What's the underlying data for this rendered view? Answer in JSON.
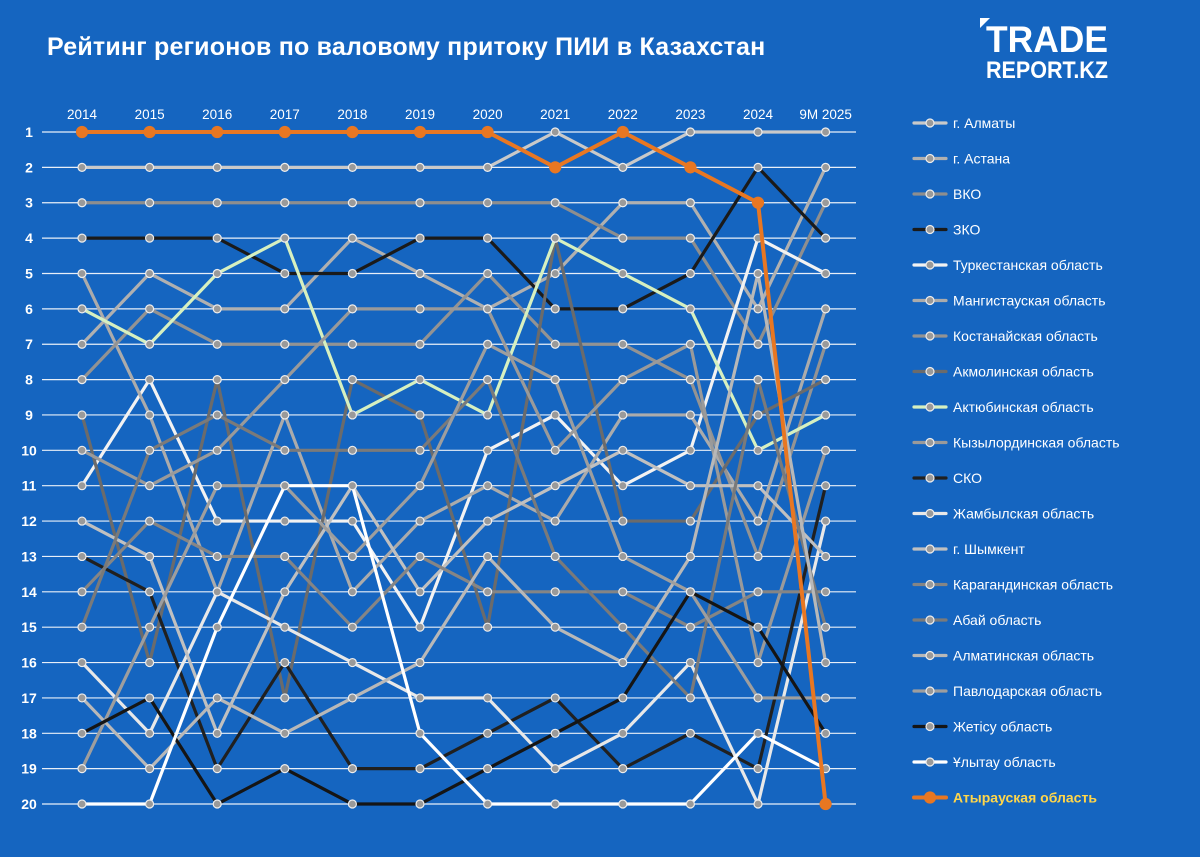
{
  "logo": {
    "line1": "TRADE",
    "line2": "REPORT.KZ",
    "tagline": ""
  },
  "colors": {
    "background": "#1565c0",
    "gridline": "#ffffff",
    "highlight": "#e87722",
    "highlight_label": "#ffd64a"
  },
  "chart_data": {
    "type": "line",
    "title": "Рейтинг  регионов по валовому притоку ПИИ в Казахстан",
    "x": [
      "2014",
      "2015",
      "2016",
      "2017",
      "2018",
      "2019",
      "2020",
      "2021",
      "2022",
      "2023",
      "2024",
      "9М 2025"
    ],
    "y_ticks": [
      1,
      2,
      3,
      4,
      5,
      6,
      7,
      8,
      9,
      10,
      11,
      12,
      13,
      14,
      15,
      16,
      17,
      18,
      19,
      20
    ],
    "ylim": [
      1,
      20
    ],
    "y_inverted": true,
    "grid": true,
    "legend_position": "right",
    "series": [
      {
        "name": "г. Алматы",
        "color": "#c9c9c9",
        "values": [
          2,
          2,
          2,
          2,
          2,
          2,
          2,
          1,
          2,
          1,
          1,
          1
        ]
      },
      {
        "name": "г. Астана",
        "color": "#b0b0b0",
        "values": [
          7,
          5,
          6,
          6,
          4,
          5,
          6,
          5,
          3,
          3,
          6,
          2
        ]
      },
      {
        "name": "ВКО",
        "color": "#8e8e8e",
        "values": [
          3,
          3,
          3,
          3,
          3,
          3,
          3,
          3,
          4,
          4,
          7,
          3
        ]
      },
      {
        "name": "ЗКО",
        "color": "#1a1a1a",
        "values": [
          4,
          4,
          4,
          5,
          5,
          4,
          4,
          6,
          6,
          5,
          2,
          4
        ]
      },
      {
        "name": "Туркестанская область",
        "color": "#f2f2f2",
        "values": [
          11,
          8,
          12,
          12,
          12,
          15,
          10,
          9,
          11,
          10,
          4,
          5
        ]
      },
      {
        "name": "Мангистауская область",
        "color": "#ababab",
        "values": [
          5,
          9,
          14,
          9,
          14,
          12,
          11,
          12,
          9,
          9,
          12,
          6
        ]
      },
      {
        "name": "Костанайская область",
        "color": "#939393",
        "values": [
          8,
          6,
          7,
          7,
          7,
          7,
          5,
          7,
          7,
          8,
          13,
          7
        ]
      },
      {
        "name": "Акмолинская область",
        "color": "#6b6b6b",
        "values": [
          9,
          16,
          8,
          17,
          8,
          9,
          15,
          4,
          12,
          12,
          9,
          8
        ]
      },
      {
        "name": "Актюбинская область",
        "color": "#d6f0c0",
        "values": [
          6,
          7,
          5,
          4,
          9,
          8,
          9,
          4,
          5,
          6,
          10,
          9
        ]
      },
      {
        "name": "Кызылординская область",
        "color": "#9a9a9a",
        "values": [
          10,
          11,
          10,
          8,
          6,
          6,
          6,
          10,
          8,
          7,
          16,
          10
        ]
      },
      {
        "name": "СКО",
        "color": "#202020",
        "values": [
          13,
          14,
          19,
          16,
          19,
          19,
          18,
          17,
          19,
          18,
          19,
          11
        ]
      },
      {
        "name": "Жамбылская область",
        "color": "#e8e8e8",
        "values": [
          16,
          18,
          14,
          15,
          16,
          17,
          17,
          19,
          18,
          16,
          20,
          12
        ]
      },
      {
        "name": "г. Шымкент",
        "color": "#c0c0c0",
        "values": [
          12,
          13,
          18,
          14,
          11,
          14,
          12,
          11,
          10,
          11,
          11,
          13
        ]
      },
      {
        "name": "Карагандинская область",
        "color": "#858585",
        "values": [
          14,
          12,
          13,
          13,
          15,
          13,
          14,
          14,
          14,
          15,
          14,
          14
        ]
      },
      {
        "name": "Абай область",
        "color": "#7a7a7a",
        "values": [
          15,
          10,
          9,
          10,
          10,
          10,
          8,
          13,
          15,
          17,
          8,
          15
        ]
      },
      {
        "name": "Алматинская область",
        "color": "#b8b8b8",
        "values": [
          17,
          19,
          17,
          18,
          17,
          16,
          13,
          15,
          16,
          13,
          5,
          16
        ]
      },
      {
        "name": "Павлодарская область",
        "color": "#9e9e9e",
        "values": [
          19,
          15,
          11,
          11,
          13,
          11,
          7,
          8,
          13,
          14,
          17,
          17
        ]
      },
      {
        "name": "Жетісу область",
        "color": "#151515",
        "values": [
          18,
          17,
          20,
          19,
          20,
          20,
          19,
          18,
          17,
          14,
          15,
          18
        ]
      },
      {
        "name": "Ұлытау область",
        "color": "#ffffff",
        "values": [
          20,
          20,
          15,
          11,
          11,
          18,
          20,
          20,
          20,
          20,
          18,
          19
        ]
      },
      {
        "name": "Атырауская область",
        "color": "#e87722",
        "highlight": true,
        "values": [
          1,
          1,
          1,
          1,
          1,
          1,
          1,
          2,
          1,
          2,
          3,
          20
        ]
      }
    ]
  }
}
